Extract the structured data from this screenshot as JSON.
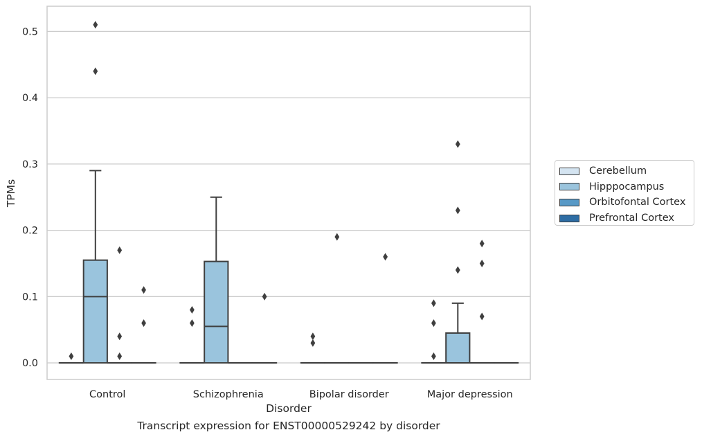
{
  "chart_data": {
    "type": "box",
    "xlabel": "Disorder",
    "ylabel": "TPMs",
    "categories": [
      "Control",
      "Schizophrenia",
      "Bipolar disorder",
      "Major depression"
    ],
    "yticks": [
      "0.0",
      "0.1",
      "0.2",
      "0.3",
      "0.4",
      "0.5"
    ],
    "ylim": [
      -0.025,
      0.538
    ],
    "grid": "horizontal",
    "legend_position": "right",
    "series": [
      {
        "name": "Cerebellum",
        "color": "#d4e4f1",
        "boxes": [
          {
            "category": "Control",
            "q1": 0,
            "median": 0,
            "q3": 0,
            "whisker_low": 0,
            "whisker_high": 0,
            "outliers": [
              0.01
            ]
          },
          {
            "category": "Schizophrenia",
            "q1": 0,
            "median": 0,
            "q3": 0,
            "whisker_low": 0,
            "whisker_high": 0,
            "outliers": [
              0.08,
              0.06
            ]
          },
          {
            "category": "Bipolar disorder",
            "q1": 0,
            "median": 0,
            "q3": 0,
            "whisker_low": 0,
            "whisker_high": 0,
            "outliers": [
              0.04,
              0.03
            ]
          },
          {
            "category": "Major depression",
            "q1": 0,
            "median": 0,
            "q3": 0,
            "whisker_low": 0,
            "whisker_high": 0,
            "outliers": [
              0.09,
              0.06,
              0.01
            ]
          }
        ]
      },
      {
        "name": "Hipppocampus",
        "color": "#9ac4dd",
        "boxes": [
          {
            "category": "Control",
            "q1": 0,
            "median": 0.1,
            "q3": 0.155,
            "whisker_low": 0,
            "whisker_high": 0.29,
            "outliers": [
              0.51,
              0.44
            ]
          },
          {
            "category": "Schizophrenia",
            "q1": 0,
            "median": 0.055,
            "q3": 0.153,
            "whisker_low": 0,
            "whisker_high": 0.25,
            "outliers": []
          },
          {
            "category": "Bipolar disorder",
            "q1": 0,
            "median": 0,
            "q3": 0,
            "whisker_low": 0,
            "whisker_high": 0,
            "outliers": [
              0.19
            ]
          },
          {
            "category": "Major depression",
            "q1": 0,
            "median": 0,
            "q3": 0.045,
            "whisker_low": 0,
            "whisker_high": 0.09,
            "outliers": [
              0.33,
              0.23,
              0.14
            ]
          }
        ]
      },
      {
        "name": "Orbitofontal Cortex",
        "color": "#5899c6",
        "boxes": [
          {
            "category": "Control",
            "q1": 0,
            "median": 0,
            "q3": 0,
            "whisker_low": 0,
            "whisker_high": 0,
            "outliers": [
              0.17,
              0.04,
              0.01
            ]
          },
          {
            "category": "Schizophrenia",
            "q1": 0,
            "median": 0,
            "q3": 0,
            "whisker_low": 0,
            "whisker_high": 0,
            "outliers": []
          },
          {
            "category": "Bipolar disorder",
            "q1": 0,
            "median": 0,
            "q3": 0,
            "whisker_low": 0,
            "whisker_high": 0,
            "outliers": []
          },
          {
            "category": "Major depression",
            "q1": 0,
            "median": 0,
            "q3": 0,
            "whisker_low": 0,
            "whisker_high": 0,
            "outliers": [
              0.18,
              0.15,
              0.07
            ]
          }
        ]
      },
      {
        "name": "Prefrontal Cortex",
        "color": "#2e6da4",
        "boxes": [
          {
            "category": "Control",
            "q1": 0,
            "median": 0,
            "q3": 0,
            "whisker_low": 0,
            "whisker_high": 0,
            "outliers": [
              0.11,
              0.06
            ]
          },
          {
            "category": "Schizophrenia",
            "q1": 0,
            "median": 0,
            "q3": 0,
            "whisker_low": 0,
            "whisker_high": 0,
            "outliers": [
              0.1
            ]
          },
          {
            "category": "Bipolar disorder",
            "q1": 0,
            "median": 0,
            "q3": 0,
            "whisker_low": 0,
            "whisker_high": 0,
            "outliers": [
              0.16
            ]
          },
          {
            "category": "Major depression",
            "q1": 0,
            "median": 0,
            "q3": 0,
            "whisker_low": 0,
            "whisker_high": 0,
            "outliers": []
          }
        ]
      }
    ]
  },
  "caption": "Transcript expression for ENST00000529242 by disorder"
}
